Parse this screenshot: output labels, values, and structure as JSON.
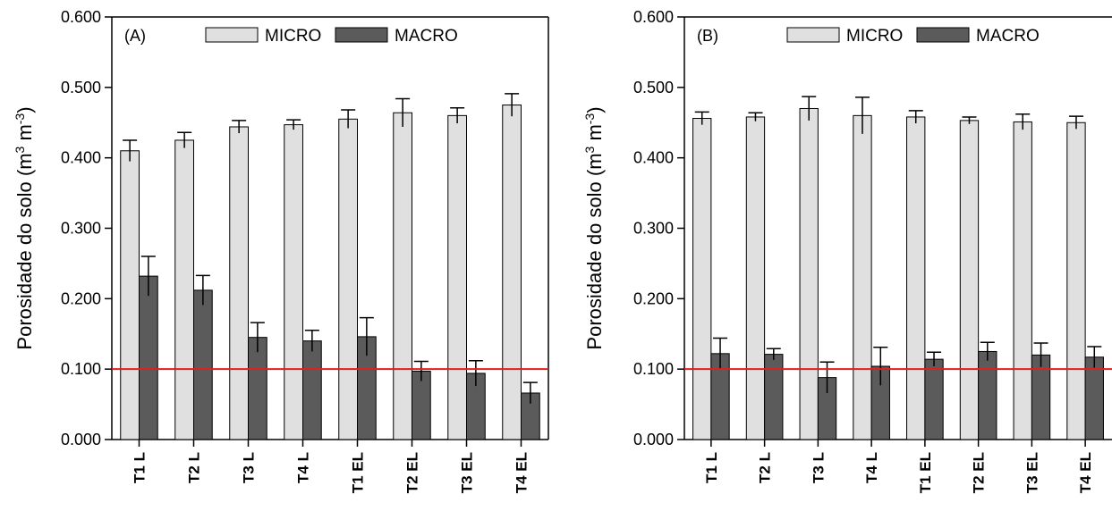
{
  "chart_data": [
    {
      "type": "bar",
      "panel_label": "(A)",
      "ylabel": "Porosidade do solo (m",
      "ylabel_unit_exp1": "3",
      "ylabel_mid": " m",
      "ylabel_unit_exp2": "-3",
      "ylabel_close": ")",
      "ylim": [
        0,
        0.6
      ],
      "yticks": [
        "0.000",
        "0.100",
        "0.200",
        "0.300",
        "0.400",
        "0.500",
        "0.600"
      ],
      "categories": [
        "T1 L",
        "T2 L",
        "T3 L",
        "T4 L",
        "T1 EL",
        "T2 EL",
        "T3 EL",
        "T4 EL"
      ],
      "reference_line": 0.1,
      "legend": "top",
      "series": [
        {
          "name": "MICRO",
          "color": "#e0e0e0",
          "values": [
            0.41,
            0.425,
            0.444,
            0.447,
            0.455,
            0.464,
            0.46,
            0.475
          ],
          "errors": [
            0.015,
            0.011,
            0.009,
            0.007,
            0.013,
            0.02,
            0.011,
            0.016
          ]
        },
        {
          "name": "MACRO",
          "color": "#5b5b5b",
          "values": [
            0.232,
            0.212,
            0.145,
            0.14,
            0.146,
            0.097,
            0.094,
            0.066
          ],
          "errors": [
            0.028,
            0.021,
            0.021,
            0.015,
            0.027,
            0.014,
            0.018,
            0.015
          ]
        }
      ]
    },
    {
      "type": "bar",
      "panel_label": "(B)",
      "ylabel": "Porosidade do solo (m",
      "ylabel_unit_exp1": "3",
      "ylabel_mid": " m",
      "ylabel_unit_exp2": "-3",
      "ylabel_close": ")",
      "ylim": [
        0,
        0.6
      ],
      "yticks": [
        "0.000",
        "0.100",
        "0.200",
        "0.300",
        "0.400",
        "0.500",
        "0.600"
      ],
      "categories": [
        "T1 L",
        "T2 L",
        "T3 L",
        "T4 L",
        "T1 EL",
        "T2 EL",
        "T3 EL",
        "T4 EL"
      ],
      "reference_line": 0.1,
      "legend": "top",
      "series": [
        {
          "name": "MICRO",
          "color": "#e0e0e0",
          "values": [
            0.456,
            0.458,
            0.47,
            0.46,
            0.458,
            0.453,
            0.451,
            0.45
          ],
          "errors": [
            0.009,
            0.006,
            0.017,
            0.026,
            0.009,
            0.005,
            0.011,
            0.009
          ]
        },
        {
          "name": "MACRO",
          "color": "#5b5b5b",
          "values": [
            0.122,
            0.121,
            0.088,
            0.104,
            0.114,
            0.125,
            0.12,
            0.117
          ],
          "errors": [
            0.022,
            0.008,
            0.022,
            0.027,
            0.01,
            0.013,
            0.017,
            0.015
          ]
        }
      ]
    }
  ],
  "reference_line_color": "#e0201a"
}
